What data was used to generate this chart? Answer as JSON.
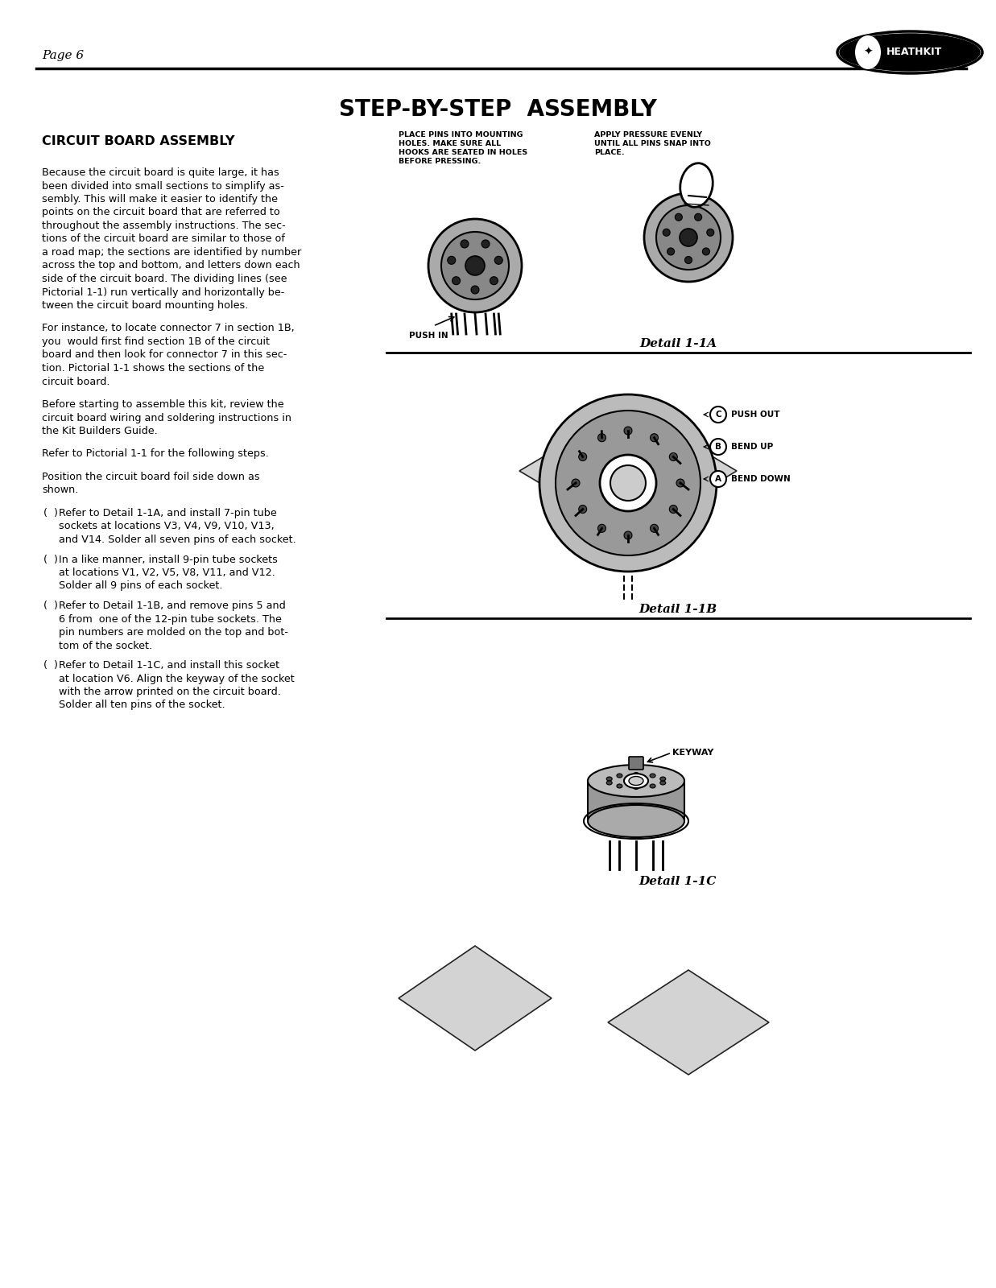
{
  "page_number": "Page 6",
  "title": "STEP-BY-STEP  ASSEMBLY",
  "section_header": "CIRCUIT BOARD ASSEMBLY",
  "bg_color": "#ffffff",
  "text_color": "#000000",
  "paragraph1": "Because the circuit board is quite large, it has\nbeen divided into small sections to simplify as-\nsembly. This will make it easier to identify the\npoints on the circuit board that are referred to\nthroughout the assembly instructions. The sec-\ntions of the circuit board are similar to those of\na road map; the sections are identified by number\nacross the top and bottom, and letters down each\nside of the circuit board. The dividing lines (see\nPictorial 1-1) run vertically and horizontally be-\ntween the circuit board mounting holes.",
  "paragraph2": "For instance, to locate connector 7 in section 1B,\nyou  would first find section 1B of the circuit\nboard and then look for connector 7 in this sec-\ntion. Pictorial 1-1 shows the sections of the\ncircuit board.",
  "paragraph3": "Before starting to assemble this kit, review the\ncircuit board wiring and soldering instructions in\nthe Kit Builders Guide.",
  "paragraph4": "Refer to Pictorial 1-1 for the following steps.",
  "paragraph5": "Position the circuit board foil side down as\nshown.",
  "bullet1": "Refer to Detail 1-1A, and install 7-pin tube\nsockets at locations V3, V4, V9, V10, V13,\nand V14. Solder all seven pins of each socket.",
  "bullet2": "In a like manner, install 9-pin tube sockets\nat locations V1, V2, V5, V8, V11, and V12.\nSolder all 9 pins of each socket.",
  "bullet3": "Refer to Detail 1-1B, and remove pins 5 and\n6 from  one of the 12-pin tube sockets. The\npin numbers are molded on the top and bot-\ntom of the socket.",
  "bullet4": "Refer to Detail 1-1C, and install this socket\nat location V6. Align the keyway of the socket\nwith the arrow printed on the circuit board.\nSolder all ten pins of the socket.",
  "caption1a_l1": "PLACE PINS INTO MOUNTING",
  "caption1a_l2": "HOLES. MAKE SURE ALL",
  "caption1a_l3": "HOOKS ARE SEATED IN HOLES",
  "caption1a_l4": "BEFORE PRESSING.",
  "caption1a_r1": "APPLY PRESSURE EVENLY",
  "caption1a_r2": "UNTIL ALL PINS SNAP INTO",
  "caption1a_r3": "PLACE.",
  "caption_push_in": "PUSH IN",
  "detail1a_label": "Detail 1-1A",
  "detail1b_label": "Detail 1-1B",
  "detail1c_label": "Detail 1-1C",
  "label_push_out": "PUSH OUT",
  "label_bend_up": "BEND UP",
  "label_bend_down": "BEND DOWN",
  "label_c": "C",
  "label_b": "B",
  "label_a": "A",
  "label_keyway": "KEYWAY"
}
